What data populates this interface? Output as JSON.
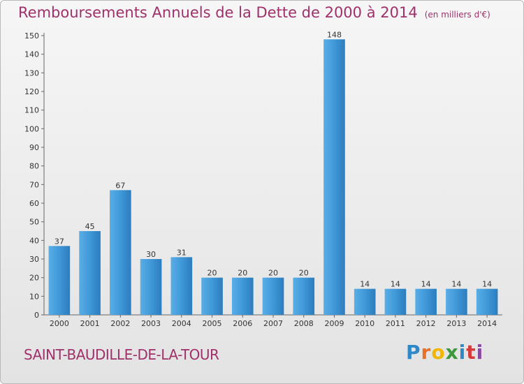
{
  "title": "Remboursements Annuels de la Dette de 2000 à 2014",
  "unit": "(en milliers d'€)",
  "commune": "SAINT-BAUDILLE-DE-LA-TOUR",
  "logo": {
    "letters": [
      "P",
      "r",
      "o",
      "x",
      "i",
      "t",
      "i"
    ],
    "colors": [
      "#2f88c8",
      "#e8702a",
      "#f0b600",
      "#3a9a3a",
      "#2f88c8",
      "#d63a3a",
      "#8a4aa0"
    ]
  },
  "colors": {
    "bar": "#3f98d8",
    "title": "#a0306a"
  },
  "chart_data": {
    "type": "bar",
    "categories": [
      "2000",
      "2001",
      "2002",
      "2003",
      "2004",
      "2005",
      "2006",
      "2007",
      "2008",
      "2009",
      "2010",
      "2011",
      "2012",
      "2013",
      "2014"
    ],
    "values": [
      37,
      45,
      67,
      30,
      31,
      20,
      20,
      20,
      20,
      148,
      14,
      14,
      14,
      14,
      14
    ],
    "ylim": [
      0,
      150
    ],
    "yticks": [
      0,
      10,
      20,
      30,
      40,
      50,
      60,
      70,
      80,
      90,
      100,
      110,
      120,
      130,
      140,
      150
    ],
    "grid": false,
    "legend": "none"
  }
}
